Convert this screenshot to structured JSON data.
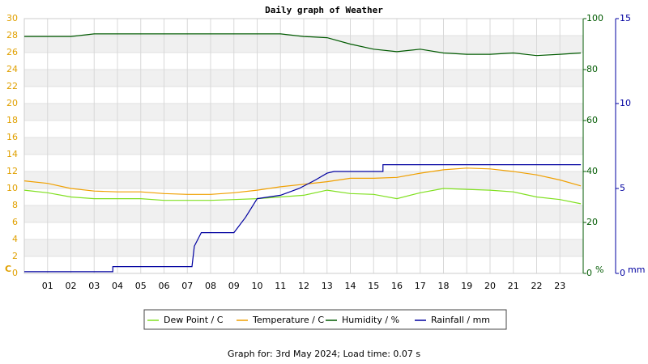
{
  "chart_data": {
    "type": "line",
    "title": "Daily graph of Weather",
    "footer": "Graph for: 3rd May 2024; Load time: 0.07 s",
    "y_label": "C",
    "y2_label": "%",
    "y3_label": "mm",
    "xlim": [
      0,
      24
    ],
    "xticks": [
      {
        "value": 1,
        "label": "01"
      },
      {
        "value": 2,
        "label": "02"
      },
      {
        "value": 3,
        "label": "03"
      },
      {
        "value": 4,
        "label": "04"
      },
      {
        "value": 5,
        "label": "05"
      },
      {
        "value": 6,
        "label": "06"
      },
      {
        "value": 7,
        "label": "07"
      },
      {
        "value": 8,
        "label": "08"
      },
      {
        "value": 9,
        "label": "09"
      },
      {
        "value": 10,
        "label": "10"
      },
      {
        "value": 11,
        "label": "11"
      },
      {
        "value": 12,
        "label": "12"
      },
      {
        "value": 13,
        "label": "13"
      },
      {
        "value": 14,
        "label": "14"
      },
      {
        "value": 15,
        "label": "15"
      },
      {
        "value": 16,
        "label": "16"
      },
      {
        "value": 17,
        "label": "17"
      },
      {
        "value": 18,
        "label": "18"
      },
      {
        "value": 19,
        "label": "19"
      },
      {
        "value": 20,
        "label": "20"
      },
      {
        "value": 21,
        "label": "21"
      },
      {
        "value": 22,
        "label": "22"
      },
      {
        "value": 23,
        "label": "23"
      }
    ],
    "ylim": [
      0,
      30
    ],
    "yticks": [
      0,
      2,
      4,
      6,
      8,
      10,
      12,
      14,
      16,
      18,
      20,
      22,
      24,
      26,
      28,
      30
    ],
    "y2lim": [
      0,
      100
    ],
    "y2ticks": [
      0,
      20,
      40,
      60,
      80,
      100
    ],
    "y3lim": [
      0,
      15
    ],
    "y3ticks": [
      0,
      5,
      10,
      15
    ],
    "grid": true,
    "x": [
      0,
      1,
      2,
      3,
      4,
      5,
      6,
      7,
      8,
      9,
      10,
      11,
      12,
      13,
      14,
      15,
      16,
      17,
      18,
      19,
      20,
      21,
      22,
      23,
      23.9
    ],
    "series": [
      {
        "name": "Dew Point / C",
        "color": "#80e020",
        "axis": "y",
        "values": [
          9.8,
          9.5,
          9.0,
          8.8,
          8.8,
          8.8,
          8.6,
          8.6,
          8.6,
          8.7,
          8.8,
          9.0,
          9.2,
          9.8,
          9.4,
          9.3,
          8.8,
          9.5,
          10.0,
          9.9,
          9.8,
          9.6,
          9.0,
          8.7,
          8.2
        ]
      },
      {
        "name": "Temperature / C",
        "color": "#f0a000",
        "axis": "y",
        "values": [
          10.9,
          10.6,
          10.0,
          9.7,
          9.6,
          9.6,
          9.4,
          9.3,
          9.3,
          9.5,
          9.8,
          10.2,
          10.5,
          10.8,
          11.2,
          11.2,
          11.3,
          11.8,
          12.2,
          12.4,
          12.3,
          12.0,
          11.6,
          11.0,
          10.3
        ]
      },
      {
        "name": "Humidity / %",
        "color": "#005a00",
        "axis": "y2",
        "values": [
          93,
          93,
          93,
          94,
          94,
          94,
          94,
          94,
          94,
          94,
          94,
          94,
          93,
          92.5,
          90,
          88,
          87,
          88,
          86.5,
          86,
          86,
          86.5,
          85.5,
          86,
          86.5
        ]
      },
      {
        "name": "Rainfall / mm",
        "color": "#0000a0",
        "axis": "y3",
        "x": [
          0,
          3.8,
          3.8,
          7.2,
          7.3,
          7.6,
          9,
          9.5,
          10,
          11,
          11.8,
          12.5,
          13,
          13.3,
          15.4,
          15.4,
          23.9
        ],
        "values": [
          0.1,
          0.1,
          0.4,
          0.4,
          1.6,
          2.4,
          2.4,
          3.3,
          4.4,
          4.6,
          5.0,
          5.5,
          5.9,
          6.0,
          6.0,
          6.4,
          6.4
        ]
      }
    ]
  }
}
